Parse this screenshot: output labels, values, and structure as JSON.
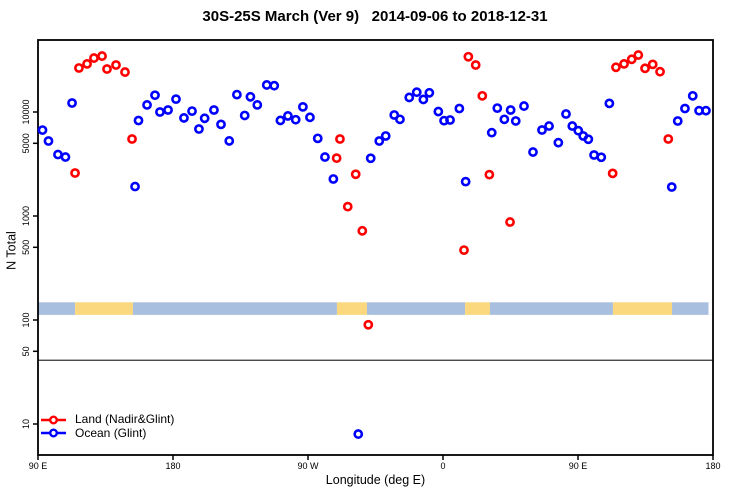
{
  "title": "30S-25S March (Ver 9)   2014-09-06 to 2018-12-31",
  "colors": {
    "land": "#ff0000",
    "ocean": "#0000ff",
    "band_land": "#fbd87e",
    "band_ocean": "#a9bfdf",
    "frame": "#000000",
    "reference_line": "#333333"
  },
  "chart_data": {
    "type": "scatter",
    "title": "30S-25S March (Ver 9)   2014-09-06 to 2018-12-31",
    "xlabel": "Longitude (deg E)",
    "ylabel": "N Total",
    "x_axis": {
      "span_deg": 450,
      "ticks": [
        {
          "deg": 0,
          "label": "90 E"
        },
        {
          "deg": 90,
          "label": "180"
        },
        {
          "deg": 180,
          "label": "90 W"
        },
        {
          "deg": 270,
          "label": "0"
        },
        {
          "deg": 360,
          "label": "90 E"
        },
        {
          "deg": 450,
          "label": "180"
        }
      ]
    },
    "y_axis": {
      "scale": "log",
      "tick_values": [
        10000,
        5000,
        1000,
        500,
        100,
        50,
        10
      ],
      "range": [
        7,
        60000
      ]
    },
    "reference_line_n": 41,
    "land_ocean_band": {
      "n_range": [
        112,
        148
      ],
      "segments": [
        {
          "from_deg": 0,
          "to_deg": 24.7,
          "surface": "ocean"
        },
        {
          "from_deg": 24.7,
          "to_deg": 63.3,
          "surface": "land"
        },
        {
          "from_deg": 63.3,
          "to_deg": 199.3,
          "surface": "ocean"
        },
        {
          "from_deg": 199.3,
          "to_deg": 219.3,
          "surface": "land"
        },
        {
          "from_deg": 219.3,
          "to_deg": 284.7,
          "surface": "ocean"
        },
        {
          "from_deg": 284.7,
          "to_deg": 301.3,
          "surface": "land"
        },
        {
          "from_deg": 301.3,
          "to_deg": 383.3,
          "surface": "ocean"
        },
        {
          "from_deg": 383.3,
          "to_deg": 422.7,
          "surface": "land"
        },
        {
          "from_deg": 422.7,
          "to_deg": 447,
          "surface": "ocean"
        }
      ]
    },
    "series": [
      {
        "name": "Land (Nadir&Glint)",
        "color": "#ff0000",
        "marker": "open-circle",
        "points": [
          [
            24.7,
            2590
          ],
          [
            27.3,
            26500
          ],
          [
            32.7,
            29000
          ],
          [
            37.3,
            33000
          ],
          [
            42.7,
            34500
          ],
          [
            46,
            25900
          ],
          [
            52,
            28300
          ],
          [
            58,
            24200
          ],
          [
            62.7,
            5500
          ],
          [
            199.1,
            3600
          ],
          [
            201.3,
            5500
          ],
          [
            206.5,
            1230
          ],
          [
            211.8,
            2520
          ],
          [
            216.2,
            720
          ],
          [
            220.2,
            90
          ],
          [
            284,
            470
          ],
          [
            286.9,
            34000
          ],
          [
            291.8,
            28300
          ],
          [
            296.2,
            14300
          ],
          [
            300.9,
            2500
          ],
          [
            314.7,
            875
          ],
          [
            383.1,
            2570
          ],
          [
            385.3,
            26900
          ],
          [
            390.7,
            29000
          ],
          [
            395.8,
            32100
          ],
          [
            400.2,
            35300
          ],
          [
            404.7,
            26300
          ],
          [
            409.8,
            28700
          ],
          [
            414.7,
            24400
          ],
          [
            420.2,
            5500
          ]
        ]
      },
      {
        "name": "Ocean (Glint)",
        "color": "#0000ff",
        "marker": "open-circle",
        "points": [
          [
            3,
            6700
          ],
          [
            7,
            5260
          ],
          [
            13.3,
            3900
          ],
          [
            18.3,
            3690
          ],
          [
            22.7,
            12200
          ],
          [
            64.7,
            1920
          ],
          [
            67,
            8280
          ],
          [
            72.7,
            11700
          ],
          [
            78,
            14500
          ],
          [
            81.3,
            10000
          ],
          [
            86.7,
            10450
          ],
          [
            92,
            13300
          ],
          [
            97.3,
            8770
          ],
          [
            102.7,
            10200
          ],
          [
            107.3,
            6860
          ],
          [
            111.1,
            8700
          ],
          [
            117.3,
            10450
          ],
          [
            122,
            7600
          ],
          [
            127.5,
            5270
          ],
          [
            132.6,
            14700
          ],
          [
            137.8,
            9260
          ],
          [
            141.6,
            14000
          ],
          [
            146.2,
            11700
          ],
          [
            152.5,
            18200
          ],
          [
            157.5,
            17900
          ],
          [
            161.6,
            8300
          ],
          [
            166.6,
            9170
          ],
          [
            171.8,
            8430
          ],
          [
            176.6,
            11200
          ],
          [
            181.3,
            8890
          ],
          [
            186.5,
            5580
          ],
          [
            191.3,
            3690
          ],
          [
            196.9,
            2270
          ],
          [
            213.5,
            8
          ],
          [
            221.8,
            3590
          ],
          [
            227.5,
            5260
          ],
          [
            231.8,
            5880
          ],
          [
            237.5,
            9360
          ],
          [
            241.3,
            8500
          ],
          [
            247.5,
            13800
          ],
          [
            252.5,
            15500
          ],
          [
            256.9,
            13200
          ],
          [
            260.9,
            15300
          ],
          [
            266.9,
            10100
          ],
          [
            270.7,
            8250
          ],
          [
            274.7,
            8380
          ],
          [
            280.9,
            10800
          ],
          [
            285.1,
            2140
          ],
          [
            302.5,
            6330
          ],
          [
            306.2,
            10900
          ],
          [
            310.9,
            8500
          ],
          [
            315.1,
            10450
          ],
          [
            318.5,
            8200
          ],
          [
            324,
            11400
          ],
          [
            330,
            4120
          ],
          [
            336,
            6710
          ],
          [
            340.7,
            7330
          ],
          [
            346.9,
            5070
          ],
          [
            352,
            9570
          ],
          [
            356.2,
            7330
          ],
          [
            360.2,
            6610
          ],
          [
            363.5,
            5880
          ],
          [
            366.9,
            5470
          ],
          [
            370.7,
            3860
          ],
          [
            375.5,
            3670
          ],
          [
            380.9,
            12100
          ],
          [
            422.5,
            1900
          ],
          [
            426.5,
            8190
          ],
          [
            431.3,
            10800
          ],
          [
            436.5,
            14300
          ],
          [
            440.7,
            10300
          ],
          [
            445.3,
            10300
          ]
        ]
      }
    ],
    "legend": {
      "position": "bottom-left",
      "items": [
        "Land (Nadir&Glint)",
        "Ocean (Glint)"
      ]
    }
  }
}
